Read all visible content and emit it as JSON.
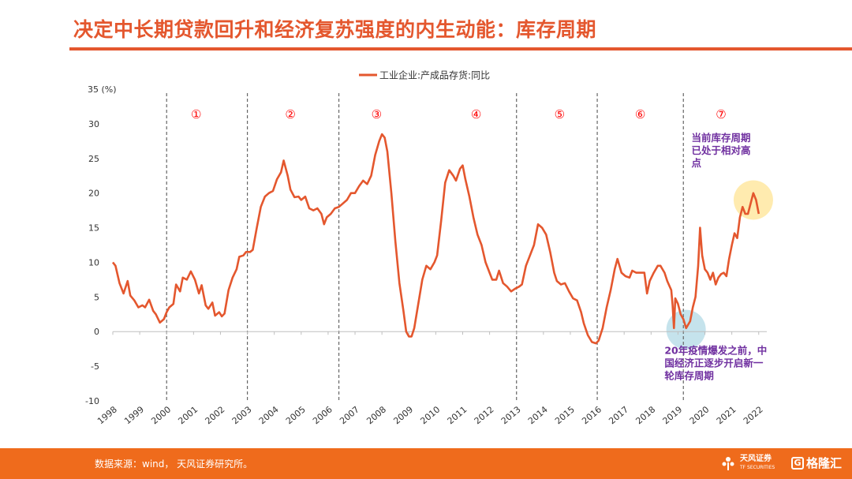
{
  "header": {
    "title": "决定中长期贷款回升和经济复苏强度的内生动能：库存周期"
  },
  "footer": {
    "source": "数据来源：wind， 天风证券研究所。",
    "brand_name": "天风证券",
    "brand_sub": "TF SECURITIES",
    "brand2": "格隆汇"
  },
  "colors": {
    "accent": "#e4572e",
    "line": "#e4572e",
    "footer": "#ef6b1c",
    "annotation": "#7030a0",
    "highlight_yellow": "#ffe9a6",
    "highlight_blue": "#bfe0ea",
    "cycle_marker": "#ff0000"
  },
  "chart_data": {
    "type": "line",
    "legend": "工业企业:产成品存货:同比",
    "legend_position": "top-center",
    "y_unit_label": "35 (%)",
    "ylim": [
      -10,
      35
    ],
    "y_ticks": [
      "35 (%)",
      "30",
      "25",
      "20",
      "15",
      "10",
      "5",
      "0",
      "-5",
      "-10"
    ],
    "x_range": [
      1998,
      2022.3
    ],
    "x_ticks": [
      "1998",
      "1999",
      "2000",
      "2001",
      "2002",
      "2003",
      "2004",
      "2005",
      "2006",
      "2007",
      "2008",
      "2009",
      "2010",
      "2011",
      "2012",
      "2013",
      "2014",
      "2015",
      "2016",
      "2017",
      "2018",
      "2019",
      "2020",
      "2021",
      "2022"
    ],
    "grid": false,
    "dividers": [
      2000,
      2003,
      2006.4,
      2013.0,
      2016.0,
      2019.2
    ],
    "cycles": [
      {
        "label": "①",
        "x": 2001.1
      },
      {
        "label": "②",
        "x": 2004.6
      },
      {
        "label": "③",
        "x": 2007.8
      },
      {
        "label": "④",
        "x": 2011.5
      },
      {
        "label": "⑤",
        "x": 2014.6
      },
      {
        "label": "⑥",
        "x": 2017.6
      },
      {
        "label": "⑦",
        "x": 2020.6
      }
    ],
    "series": [
      {
        "name": "工业企业:产成品存货:同比",
        "points": [
          [
            1998.0,
            10.0
          ],
          [
            1998.1,
            9.5
          ],
          [
            1998.25,
            7.0
          ],
          [
            1998.4,
            5.5
          ],
          [
            1998.55,
            7.3
          ],
          [
            1998.65,
            5.2
          ],
          [
            1998.8,
            4.5
          ],
          [
            1998.95,
            3.5
          ],
          [
            1999.1,
            3.8
          ],
          [
            1999.2,
            3.5
          ],
          [
            1999.35,
            4.6
          ],
          [
            1999.5,
            3.0
          ],
          [
            1999.6,
            2.5
          ],
          [
            1999.75,
            1.3
          ],
          [
            1999.9,
            1.8
          ],
          [
            2000.0,
            2.8
          ],
          [
            2000.1,
            3.5
          ],
          [
            2000.25,
            4.0
          ],
          [
            2000.35,
            6.8
          ],
          [
            2000.5,
            5.8
          ],
          [
            2000.6,
            7.8
          ],
          [
            2000.75,
            7.5
          ],
          [
            2000.9,
            8.7
          ],
          [
            2001.05,
            7.5
          ],
          [
            2001.2,
            5.5
          ],
          [
            2001.3,
            6.7
          ],
          [
            2001.45,
            3.8
          ],
          [
            2001.55,
            3.3
          ],
          [
            2001.7,
            4.2
          ],
          [
            2001.8,
            2.3
          ],
          [
            2001.95,
            2.8
          ],
          [
            2002.05,
            2.2
          ],
          [
            2002.15,
            2.6
          ],
          [
            2002.3,
            6.0
          ],
          [
            2002.45,
            7.8
          ],
          [
            2002.6,
            9.0
          ],
          [
            2002.7,
            10.8
          ],
          [
            2002.85,
            11.0
          ],
          [
            2002.95,
            11.5
          ],
          [
            2003.1,
            11.5
          ],
          [
            2003.2,
            11.8
          ],
          [
            2003.35,
            15.0
          ],
          [
            2003.5,
            18.0
          ],
          [
            2003.65,
            19.5
          ],
          [
            2003.8,
            20.0
          ],
          [
            2003.95,
            20.3
          ],
          [
            2004.1,
            22.0
          ],
          [
            2004.25,
            23.0
          ],
          [
            2004.35,
            24.7
          ],
          [
            2004.5,
            22.5
          ],
          [
            2004.6,
            20.5
          ],
          [
            2004.75,
            19.4
          ],
          [
            2004.9,
            19.5
          ],
          [
            2005.0,
            19.0
          ],
          [
            2005.15,
            19.5
          ],
          [
            2005.3,
            17.8
          ],
          [
            2005.45,
            17.5
          ],
          [
            2005.6,
            17.8
          ],
          [
            2005.75,
            17.0
          ],
          [
            2005.85,
            15.5
          ],
          [
            2005.95,
            16.5
          ],
          [
            2006.1,
            17.0
          ],
          [
            2006.25,
            17.8
          ],
          [
            2006.4,
            18.0
          ],
          [
            2006.55,
            18.5
          ],
          [
            2006.7,
            19.0
          ],
          [
            2006.85,
            20.0
          ],
          [
            2007.0,
            20.0
          ],
          [
            2007.15,
            21.0
          ],
          [
            2007.3,
            21.8
          ],
          [
            2007.45,
            21.3
          ],
          [
            2007.6,
            22.5
          ],
          [
            2007.75,
            25.5
          ],
          [
            2007.9,
            27.5
          ],
          [
            2008.0,
            28.5
          ],
          [
            2008.1,
            28.0
          ],
          [
            2008.2,
            26.0
          ],
          [
            2008.35,
            20.0
          ],
          [
            2008.5,
            13.0
          ],
          [
            2008.65,
            7.0
          ],
          [
            2008.8,
            3.0
          ],
          [
            2008.9,
            0.0
          ],
          [
            2009.0,
            -0.7
          ],
          [
            2009.1,
            -0.7
          ],
          [
            2009.2,
            0.5
          ],
          [
            2009.35,
            4.0
          ],
          [
            2009.5,
            7.5
          ],
          [
            2009.65,
            9.5
          ],
          [
            2009.8,
            9.0
          ],
          [
            2009.95,
            10.0
          ],
          [
            2010.05,
            11.0
          ],
          [
            2010.2,
            16.0
          ],
          [
            2010.35,
            21.5
          ],
          [
            2010.5,
            23.3
          ],
          [
            2010.65,
            22.5
          ],
          [
            2010.75,
            21.8
          ],
          [
            2010.9,
            23.5
          ],
          [
            2011.0,
            24.0
          ],
          [
            2011.1,
            22.0
          ],
          [
            2011.25,
            19.5
          ],
          [
            2011.4,
            16.5
          ],
          [
            2011.55,
            14.0
          ],
          [
            2011.7,
            12.5
          ],
          [
            2011.85,
            10.0
          ],
          [
            2012.0,
            8.5
          ],
          [
            2012.1,
            7.5
          ],
          [
            2012.25,
            7.5
          ],
          [
            2012.35,
            8.8
          ],
          [
            2012.5,
            7.0
          ],
          [
            2012.65,
            6.5
          ],
          [
            2012.8,
            5.8
          ],
          [
            2012.95,
            6.2
          ],
          [
            2013.1,
            6.5
          ],
          [
            2013.2,
            6.8
          ],
          [
            2013.35,
            9.5
          ],
          [
            2013.5,
            11.0
          ],
          [
            2013.65,
            12.5
          ],
          [
            2013.8,
            15.5
          ],
          [
            2013.95,
            15.0
          ],
          [
            2014.1,
            14.0
          ],
          [
            2014.25,
            11.5
          ],
          [
            2014.4,
            8.5
          ],
          [
            2014.5,
            7.3
          ],
          [
            2014.65,
            6.8
          ],
          [
            2014.8,
            7.0
          ],
          [
            2014.95,
            5.8
          ],
          [
            2015.1,
            4.8
          ],
          [
            2015.25,
            4.5
          ],
          [
            2015.4,
            2.8
          ],
          [
            2015.5,
            1.2
          ],
          [
            2015.65,
            -0.5
          ],
          [
            2015.8,
            -1.5
          ],
          [
            2015.95,
            -1.7
          ],
          [
            2016.05,
            -1.3
          ],
          [
            2016.2,
            0.5
          ],
          [
            2016.35,
            3.5
          ],
          [
            2016.5,
            6.0
          ],
          [
            2016.65,
            9.0
          ],
          [
            2016.75,
            10.5
          ],
          [
            2016.9,
            8.5
          ],
          [
            2017.05,
            8.0
          ],
          [
            2017.2,
            7.8
          ],
          [
            2017.3,
            8.8
          ],
          [
            2017.45,
            8.5
          ],
          [
            2017.6,
            8.5
          ],
          [
            2017.75,
            8.5
          ],
          [
            2017.85,
            5.5
          ],
          [
            2017.95,
            7.3
          ],
          [
            2018.1,
            8.5
          ],
          [
            2018.25,
            9.5
          ],
          [
            2018.35,
            9.5
          ],
          [
            2018.5,
            8.5
          ],
          [
            2018.6,
            7.3
          ],
          [
            2018.75,
            6.0
          ],
          [
            2018.8,
            3.8
          ],
          [
            2018.85,
            0.5
          ],
          [
            2018.9,
            4.8
          ],
          [
            2019.0,
            4.0
          ],
          [
            2019.1,
            2.5
          ],
          [
            2019.2,
            1.8
          ],
          [
            2019.3,
            0.5
          ],
          [
            2019.45,
            1.5
          ],
          [
            2019.55,
            3.5
          ],
          [
            2019.65,
            5.0
          ],
          [
            2019.75,
            9.5
          ],
          [
            2019.82,
            15.0
          ],
          [
            2019.9,
            11.0
          ],
          [
            2020.0,
            9.0
          ],
          [
            2020.1,
            8.5
          ],
          [
            2020.2,
            7.5
          ],
          [
            2020.3,
            8.5
          ],
          [
            2020.4,
            6.8
          ],
          [
            2020.5,
            7.8
          ],
          [
            2020.6,
            8.3
          ],
          [
            2020.7,
            8.5
          ],
          [
            2020.8,
            8.0
          ],
          [
            2020.9,
            10.5
          ],
          [
            2021.0,
            12.5
          ],
          [
            2021.1,
            14.2
          ],
          [
            2021.2,
            13.5
          ],
          [
            2021.3,
            16.5
          ],
          [
            2021.4,
            18.0
          ],
          [
            2021.5,
            17.0
          ],
          [
            2021.6,
            17.0
          ],
          [
            2021.7,
            18.5
          ],
          [
            2021.8,
            20.0
          ],
          [
            2021.9,
            19.0
          ],
          [
            2022.0,
            17.0
          ]
        ]
      }
    ],
    "highlights": [
      {
        "x": 2019.3,
        "y": 0.3,
        "color": "blue"
      },
      {
        "x": 2021.8,
        "y": 19.0,
        "color": "yellow"
      }
    ],
    "annotations": [
      {
        "lines": [
          "当前库存周期",
          "已处于相对高",
          "点"
        ],
        "x": 2019.5,
        "y": 27.5
      },
      {
        "lines": [
          "20年疫情爆发之前，中",
          "国经济正逐步开启新一",
          "轮库存周期"
        ],
        "x": 2018.5,
        "y": -3.2
      }
    ]
  }
}
